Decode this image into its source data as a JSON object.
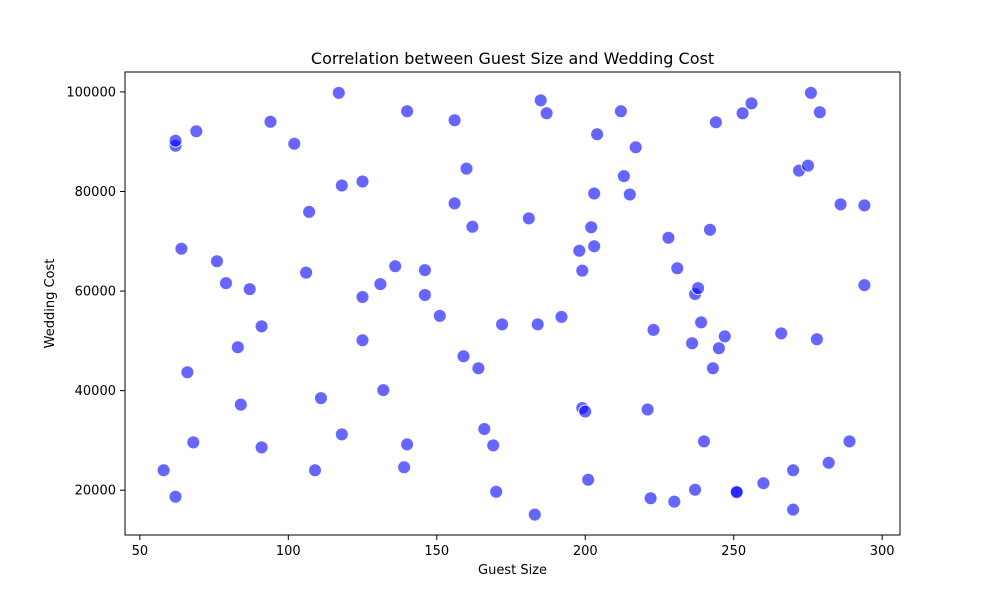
{
  "chart_data": {
    "type": "scatter",
    "title": "Correlation between Guest Size and Wedding Cost",
    "xlabel": "Guest Size",
    "ylabel": "Wedding Cost",
    "xlim": [
      45,
      306
    ],
    "ylim": [
      11000,
      104000
    ],
    "xticks": [
      50,
      100,
      150,
      200,
      250,
      300
    ],
    "yticks": [
      20000,
      40000,
      60000,
      80000,
      100000
    ],
    "xtick_labels": [
      "50",
      "100",
      "150",
      "200",
      "250",
      "300"
    ],
    "ytick_labels": [
      "20000",
      "40000",
      "60000",
      "80000",
      "100000"
    ],
    "grid": false,
    "point_color": "#0000ff",
    "point_alpha": 0.6,
    "points": [
      {
        "x": 58,
        "y": 24000
      },
      {
        "x": 62,
        "y": 18700
      },
      {
        "x": 62,
        "y": 89200
      },
      {
        "x": 62,
        "y": 90200
      },
      {
        "x": 64,
        "y": 68500
      },
      {
        "x": 66,
        "y": 43700
      },
      {
        "x": 68,
        "y": 29600
      },
      {
        "x": 69,
        "y": 92100
      },
      {
        "x": 76,
        "y": 66000
      },
      {
        "x": 79,
        "y": 61600
      },
      {
        "x": 83,
        "y": 48700
      },
      {
        "x": 84,
        "y": 37200
      },
      {
        "x": 87,
        "y": 60400
      },
      {
        "x": 91,
        "y": 28600
      },
      {
        "x": 91,
        "y": 52900
      },
      {
        "x": 94,
        "y": 94000
      },
      {
        "x": 102,
        "y": 89600
      },
      {
        "x": 106,
        "y": 63700
      },
      {
        "x": 107,
        "y": 75900
      },
      {
        "x": 109,
        "y": 24000
      },
      {
        "x": 111,
        "y": 38500
      },
      {
        "x": 117,
        "y": 99800
      },
      {
        "x": 118,
        "y": 31200
      },
      {
        "x": 118,
        "y": 81200
      },
      {
        "x": 125,
        "y": 82000
      },
      {
        "x": 125,
        "y": 58800
      },
      {
        "x": 125,
        "y": 50100
      },
      {
        "x": 131,
        "y": 61400
      },
      {
        "x": 132,
        "y": 40100
      },
      {
        "x": 136,
        "y": 65000
      },
      {
        "x": 139,
        "y": 24600
      },
      {
        "x": 140,
        "y": 29200
      },
      {
        "x": 140,
        "y": 96100
      },
      {
        "x": 146,
        "y": 64200
      },
      {
        "x": 146,
        "y": 59200
      },
      {
        "x": 151,
        "y": 55000
      },
      {
        "x": 156,
        "y": 94300
      },
      {
        "x": 156,
        "y": 77600
      },
      {
        "x": 159,
        "y": 46900
      },
      {
        "x": 160,
        "y": 84600
      },
      {
        "x": 162,
        "y": 72900
      },
      {
        "x": 164,
        "y": 44500
      },
      {
        "x": 166,
        "y": 32300
      },
      {
        "x": 169,
        "y": 29000
      },
      {
        "x": 170,
        "y": 19700
      },
      {
        "x": 172,
        "y": 53300
      },
      {
        "x": 181,
        "y": 74600
      },
      {
        "x": 183,
        "y": 15100
      },
      {
        "x": 184,
        "y": 53300
      },
      {
        "x": 185,
        "y": 98300
      },
      {
        "x": 187,
        "y": 95700
      },
      {
        "x": 192,
        "y": 54800
      },
      {
        "x": 198,
        "y": 68100
      },
      {
        "x": 199,
        "y": 64100
      },
      {
        "x": 199,
        "y": 36500
      },
      {
        "x": 200,
        "y": 35800
      },
      {
        "x": 201,
        "y": 22100
      },
      {
        "x": 202,
        "y": 72800
      },
      {
        "x": 203,
        "y": 69000
      },
      {
        "x": 203,
        "y": 79600
      },
      {
        "x": 204,
        "y": 91500
      },
      {
        "x": 212,
        "y": 96100
      },
      {
        "x": 213,
        "y": 83100
      },
      {
        "x": 215,
        "y": 79400
      },
      {
        "x": 217,
        "y": 88900
      },
      {
        "x": 221,
        "y": 36200
      },
      {
        "x": 222,
        "y": 18400
      },
      {
        "x": 223,
        "y": 52200
      },
      {
        "x": 228,
        "y": 70700
      },
      {
        "x": 230,
        "y": 17700
      },
      {
        "x": 231,
        "y": 64600
      },
      {
        "x": 236,
        "y": 49500
      },
      {
        "x": 237,
        "y": 59400
      },
      {
        "x": 237,
        "y": 20100
      },
      {
        "x": 238,
        "y": 60600
      },
      {
        "x": 239,
        "y": 53700
      },
      {
        "x": 240,
        "y": 29800
      },
      {
        "x": 242,
        "y": 72300
      },
      {
        "x": 243,
        "y": 44500
      },
      {
        "x": 244,
        "y": 93900
      },
      {
        "x": 245,
        "y": 48500
      },
      {
        "x": 247,
        "y": 50900
      },
      {
        "x": 251,
        "y": 19800
      },
      {
        "x": 251,
        "y": 19600
      },
      {
        "x": 253,
        "y": 95700
      },
      {
        "x": 256,
        "y": 97700
      },
      {
        "x": 260,
        "y": 21400
      },
      {
        "x": 266,
        "y": 51500
      },
      {
        "x": 270,
        "y": 24000
      },
      {
        "x": 270,
        "y": 16100
      },
      {
        "x": 272,
        "y": 84200
      },
      {
        "x": 275,
        "y": 85200
      },
      {
        "x": 276,
        "y": 99800
      },
      {
        "x": 278,
        "y": 50300
      },
      {
        "x": 279,
        "y": 95900
      },
      {
        "x": 282,
        "y": 25500
      },
      {
        "x": 286,
        "y": 77400
      },
      {
        "x": 289,
        "y": 29800
      },
      {
        "x": 294,
        "y": 77200
      },
      {
        "x": 294,
        "y": 61200
      }
    ]
  }
}
